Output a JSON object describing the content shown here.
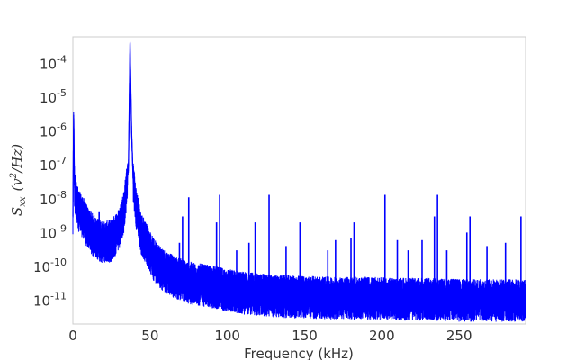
{
  "chart_data": {
    "type": "line",
    "xlabel": "Frequency (kHz)",
    "ylabel": "S_xx (v^2/Hz)",
    "ylabel_parts": {
      "sym": "S",
      "sub": "xx",
      "open": "(v",
      "sup": "2",
      "close": "/Hz)"
    },
    "x_ticks": [
      0,
      50,
      100,
      150,
      200,
      250
    ],
    "x_tick_labels": [
      "0",
      "50",
      "100",
      "150",
      "200",
      "250"
    ],
    "y_scale": "log",
    "y_ticks": [
      1e-11,
      1e-10,
      1e-09,
      1e-08,
      1e-07,
      1e-06,
      1e-05,
      0.0001
    ],
    "y_tick_labels": [
      {
        "base": "10",
        "exp": "-11"
      },
      {
        "base": "10",
        "exp": "-10"
      },
      {
        "base": "10",
        "exp": "-9"
      },
      {
        "base": "10",
        "exp": "-8"
      },
      {
        "base": "10",
        "exp": "-7"
      },
      {
        "base": "10",
        "exp": "-6"
      },
      {
        "base": "10",
        "exp": "-5"
      },
      {
        "base": "10",
        "exp": "-4"
      }
    ],
    "xlim": [
      0,
      293
    ],
    "ylim": [
      2e-12,
      0.0006
    ],
    "grid": false,
    "line_color": "#0000ff",
    "series": [
      {
        "x": [
          0,
          0.5,
          1,
          2,
          4,
          7,
          10,
          15,
          20,
          25,
          30,
          33,
          35,
          36,
          37,
          38,
          39,
          41,
          44,
          48,
          52,
          58,
          65,
          75,
          90,
          110,
          130,
          150,
          170,
          190,
          210,
          230,
          250,
          270,
          293
        ],
        "y": [
          3e-09,
          3e-06,
          3e-08,
          1e-08,
          5e-09,
          3e-09,
          1.5e-09,
          8e-10,
          6e-10,
          7e-10,
          1.5e-09,
          5e-09,
          3e-08,
          1e-07,
          0.0004,
          1e-06,
          4e-08,
          6e-09,
          1.2e-09,
          5e-10,
          2e-10,
          1e-10,
          6e-11,
          4e-11,
          3e-11,
          2e-11,
          1.6e-11,
          1.5e-11,
          1.4e-11,
          1.4e-11,
          1.3e-11,
          1.3e-11,
          1.2e-11,
          1.2e-11,
          1.2e-11
        ]
      }
    ],
    "peaks": [
      {
        "x": 17,
        "y": 4e-09
      },
      {
        "x": 69,
        "y": 5e-10
      },
      {
        "x": 71,
        "y": 3e-09
      },
      {
        "x": 75,
        "y": 1.1e-08
      },
      {
        "x": 93,
        "y": 2e-09
      },
      {
        "x": 95,
        "y": 1.3e-08
      },
      {
        "x": 106,
        "y": 3e-10
      },
      {
        "x": 114,
        "y": 5e-10
      },
      {
        "x": 118,
        "y": 2e-09
      },
      {
        "x": 127,
        "y": 1.3e-08
      },
      {
        "x": 138,
        "y": 4e-10
      },
      {
        "x": 147,
        "y": 2e-09
      },
      {
        "x": 165,
        "y": 3e-10
      },
      {
        "x": 170,
        "y": 6e-10
      },
      {
        "x": 180,
        "y": 7e-10
      },
      {
        "x": 182,
        "y": 2e-09
      },
      {
        "x": 202,
        "y": 1.3e-08
      },
      {
        "x": 210,
        "y": 6e-10
      },
      {
        "x": 217,
        "y": 3e-10
      },
      {
        "x": 226,
        "y": 6e-10
      },
      {
        "x": 234,
        "y": 3e-09
      },
      {
        "x": 236,
        "y": 1.3e-08
      },
      {
        "x": 242,
        "y": 3e-10
      },
      {
        "x": 255,
        "y": 1e-09
      },
      {
        "x": 257,
        "y": 3e-09
      },
      {
        "x": 268,
        "y": 4e-10
      },
      {
        "x": 280,
        "y": 5e-10
      },
      {
        "x": 290,
        "y": 3e-09
      }
    ]
  }
}
